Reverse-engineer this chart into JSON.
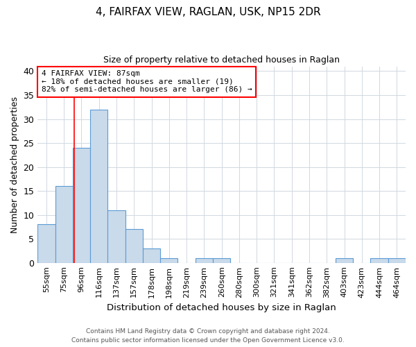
{
  "title": "4, FAIRFAX VIEW, RAGLAN, USK, NP15 2DR",
  "subtitle": "Size of property relative to detached houses in Raglan",
  "xlabel": "Distribution of detached houses by size in Raglan",
  "ylabel": "Number of detached properties",
  "categories": [
    "55sqm",
    "75sqm",
    "96sqm",
    "116sqm",
    "137sqm",
    "157sqm",
    "178sqm",
    "198sqm",
    "219sqm",
    "239sqm",
    "260sqm",
    "280sqm",
    "300sqm",
    "321sqm",
    "341sqm",
    "362sqm",
    "382sqm",
    "403sqm",
    "423sqm",
    "444sqm",
    "464sqm"
  ],
  "values": [
    8,
    16,
    24,
    32,
    11,
    7,
    3,
    1,
    0,
    1,
    1,
    0,
    0,
    0,
    0,
    0,
    0,
    1,
    0,
    1,
    1
  ],
  "bar_color": "#c9daea",
  "bar_edge_color": "#5b9bd5",
  "ylim": [
    0,
    41
  ],
  "yticks": [
    0,
    5,
    10,
    15,
    20,
    25,
    30,
    35,
    40
  ],
  "property_label": "4 FAIRFAX VIEW: 87sqm",
  "annotation_line1": "← 18% of detached houses are smaller (19)",
  "annotation_line2": "82% of semi-detached houses are larger (86) →",
  "red_line_x": 1.57,
  "footnote1": "Contains HM Land Registry data © Crown copyright and database right 2024.",
  "footnote2": "Contains public sector information licensed under the Open Government Licence v3.0."
}
